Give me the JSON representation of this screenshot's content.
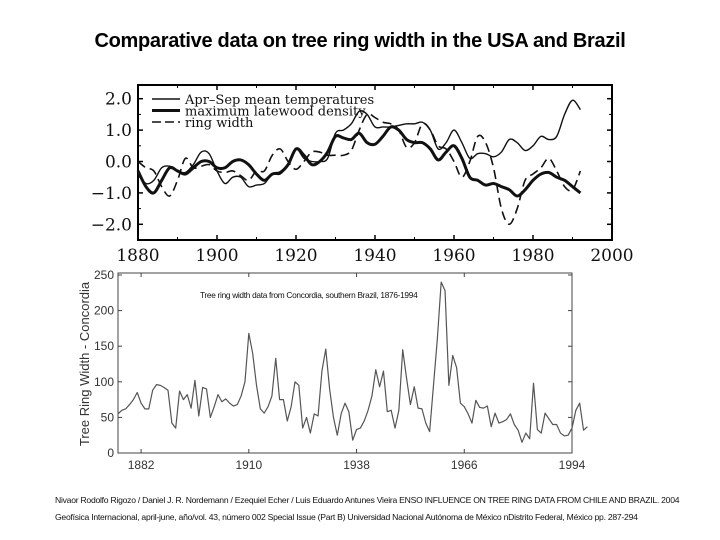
{
  "slide": {
    "title": "Comparative data on tree ring width in the USA and Brazil",
    "citation_line1": "Nivaor Rodolfo Rigozo / Daniel J. R. Nordemann / Ezequiel Echer / Luis Eduardo Antunes Vieira ENSO INFLUENCE ON TREE RING DATA FROM CHILE AND BRAZIL. 2004",
    "citation_line2": "Geofísica Internacional, april-june, año/vol. 43, número 002 Special Issue (Part B) Universidad Nacional Autónoma de México nDistrito Federal, México pp. 287-294"
  },
  "chart_data": [
    {
      "type": "line",
      "xlim": [
        1880,
        2000
      ],
      "ylim": [
        -2.5,
        2.5
      ],
      "xticks": [
        1880,
        1900,
        1920,
        1940,
        1960,
        1980,
        2000
      ],
      "xtick_labels": [
        "1880",
        "1900",
        "1920",
        "1940",
        "1960",
        "1980",
        "2000"
      ],
      "yticks": [
        2.0,
        1.0,
        0.0,
        -1.0,
        -2.0
      ],
      "ytick_labels": [
        "2.0",
        "1.0",
        "0.0",
        "−1.0",
        "−2.0"
      ],
      "legend": "top-left",
      "grid": false,
      "x": [
        1880,
        1882,
        1884,
        1886,
        1888,
        1890,
        1892,
        1894,
        1896,
        1898,
        1900,
        1902,
        1904,
        1906,
        1908,
        1910,
        1912,
        1914,
        1916,
        1918,
        1920,
        1922,
        1924,
        1926,
        1928,
        1930,
        1932,
        1934,
        1936,
        1938,
        1940,
        1942,
        1944,
        1946,
        1948,
        1950,
        1952,
        1954,
        1956,
        1958,
        1960,
        1962,
        1964,
        1966,
        1968,
        1970,
        1972,
        1974,
        1976,
        1978,
        1980,
        1982,
        1984,
        1986,
        1988,
        1990,
        1992
      ],
      "series": [
        {
          "name": "Apr–Sep mean temperatures",
          "style": "thin",
          "values": [
            -0.4,
            -0.7,
            -0.6,
            -0.2,
            -0.15,
            -0.3,
            -0.35,
            -0.1,
            0.3,
            0.25,
            -0.3,
            -0.7,
            -0.5,
            -0.5,
            -0.8,
            -0.75,
            -0.7,
            -0.4,
            -0.4,
            -0.1,
            0.4,
            0.1,
            0.0,
            0.0,
            0.1,
            0.9,
            1.0,
            1.2,
            1.6,
            1.5,
            1.1,
            1.1,
            1.1,
            1.15,
            1.2,
            1.2,
            1.25,
            1.0,
            0.4,
            0.6,
            1.0,
            0.6,
            0.1,
            0.25,
            0.25,
            0.15,
            0.3,
            0.7,
            0.6,
            0.35,
            0.5,
            0.8,
            0.7,
            0.8,
            1.5,
            1.95,
            1.65
          ]
        },
        {
          "name": "maximum latewood density",
          "style": "thick",
          "values": [
            -0.3,
            -0.8,
            -1.0,
            -0.6,
            -0.2,
            -0.3,
            -0.4,
            -0.2,
            0.0,
            0.0,
            -0.2,
            -0.2,
            0.0,
            0.05,
            -0.1,
            -0.4,
            -0.6,
            -0.4,
            -0.35,
            -0.1,
            0.4,
            0.2,
            -0.1,
            0.0,
            0.3,
            0.8,
            0.75,
            0.7,
            0.9,
            0.6,
            0.55,
            0.8,
            1.1,
            1.0,
            0.7,
            0.6,
            0.6,
            0.4,
            0.05,
            0.3,
            0.5,
            0.1,
            -0.5,
            -0.6,
            -0.75,
            -0.7,
            -0.8,
            -0.9,
            -1.1,
            -0.9,
            -0.6,
            -0.4,
            -0.35,
            -0.5,
            -0.6,
            -0.8,
            -1.0
          ]
        },
        {
          "name": "ring width",
          "style": "dashed",
          "values": [
            0.0,
            -0.2,
            -0.3,
            -0.8,
            -1.1,
            -0.6,
            0.1,
            -0.2,
            -0.15,
            -0.1,
            -0.3,
            -0.35,
            -0.3,
            -0.45,
            -0.6,
            -0.3,
            -0.3,
            0.2,
            0.4,
            0.0,
            -0.25,
            0.0,
            0.3,
            0.3,
            0.2,
            0.2,
            0.2,
            0.35,
            1.0,
            1.5,
            1.4,
            1.25,
            1.2,
            1.0,
            0.45,
            0.6,
            1.2,
            1.0,
            0.5,
            0.4,
            0.0,
            -0.5,
            0.0,
            0.8,
            0.6,
            -0.2,
            -1.5,
            -2.0,
            -1.5,
            -0.6,
            -0.4,
            -0.2,
            0.1,
            -0.3,
            -0.8,
            -0.9,
            -0.3
          ]
        }
      ]
    },
    {
      "type": "line",
      "annotation": "Tree ring width data from Concordia, southern Brazil, 1876-1994",
      "ylabel": "Tree Ring Width - Concordia",
      "xlim": [
        1876,
        1994
      ],
      "ylim": [
        0,
        250
      ],
      "xticks": [
        1882,
        1910,
        1938,
        1966,
        1994
      ],
      "xtick_labels": [
        "1882",
        "1910",
        "1938",
        "1966",
        "1994"
      ],
      "yticks": [
        0,
        50,
        100,
        150,
        200,
        250
      ],
      "ytick_labels": [
        "0",
        "50",
        "100",
        "150",
        "200",
        "250"
      ],
      "grid": false,
      "x_start": 1876,
      "x_end": 1994,
      "values": [
        55,
        60,
        62,
        68,
        75,
        85,
        70,
        62,
        62,
        88,
        96,
        95,
        92,
        88,
        42,
        35,
        87,
        75,
        82,
        63,
        102,
        52,
        92,
        90,
        50,
        65,
        82,
        72,
        76,
        70,
        66,
        68,
        80,
        100,
        168,
        140,
        95,
        62,
        56,
        65,
        80,
        133,
        75,
        75,
        45,
        65,
        100,
        95,
        35,
        50,
        28,
        55,
        52,
        115,
        146,
        90,
        50,
        25,
        55,
        70,
        58,
        18,
        33,
        35,
        45,
        60,
        80,
        117,
        93,
        115,
        58,
        60,
        35,
        60,
        145,
        105,
        68,
        93,
        63,
        62,
        42,
        30,
        95,
        160,
        240,
        228,
        95,
        137,
        120,
        70,
        65,
        55,
        42,
        74,
        64,
        63,
        66,
        37,
        56,
        42,
        44,
        47,
        55,
        40,
        32,
        15,
        28,
        20,
        98,
        33,
        28,
        56,
        48,
        40,
        40,
        28,
        24,
        25,
        35,
        60,
        70,
        32,
        37
      ]
    }
  ]
}
